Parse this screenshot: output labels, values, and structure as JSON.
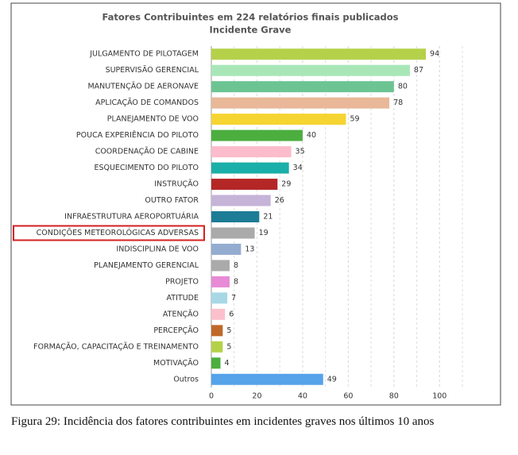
{
  "chart_data": {
    "type": "barh",
    "title": "Fatores Contribuintes em 224 relatórios finais publicados",
    "subtitle": "Incidente Grave",
    "categories": [
      "JULGAMENTO DE PILOTAGEM",
      "SUPERVISÃO GERENCIAL",
      "MANUTENÇÃO DE AERONAVE",
      "APLICAÇÃO DE COMANDOS",
      "PLANEJAMENTO DE VOO",
      "POUCA EXPERIÊNCIA DO PILOTO",
      "COORDENAÇÃO DE CABINE",
      "ESQUECIMENTO DO PILOTO",
      "INSTRUÇÃO",
      "OUTRO FATOR",
      "INFRAESTRUTURA AEROPORTUÁRIA",
      "CONDIÇÕES METEOROLÓGICAS ADVERSAS",
      "INDISCIPLINA DE VOO",
      "PLANEJAMENTO GERENCIAL",
      "PROJETO",
      "ATITUDE",
      "ATENÇÃO",
      "PERCEPÇÃO",
      "FORMAÇÃO, CAPACITAÇÃO E TREINAMENTO",
      "MOTIVAÇÃO",
      "Outros"
    ],
    "values": [
      94,
      87,
      80,
      78,
      59,
      40,
      35,
      34,
      29,
      26,
      21,
      19,
      13,
      8,
      8,
      7,
      6,
      5,
      5,
      4,
      49
    ],
    "colors": [
      "#b5d14a",
      "#a8e6b8",
      "#6cc493",
      "#e8b898",
      "#f6d431",
      "#4cae3f",
      "#fdbccb",
      "#1aafa8",
      "#b52626",
      "#c6b3d8",
      "#1d7c96",
      "#aaaaaa",
      "#93acd0",
      "#aaaaaa",
      "#e88ad6",
      "#a8d8e6",
      "#fcc0cc",
      "#c0682a",
      "#b5d14a",
      "#4cae3f",
      "#56a3ea"
    ],
    "highlight": "CONDIÇÕES METEOROLÓGICAS ADVERSAS",
    "xlim": [
      0,
      110
    ],
    "xticks": [
      0,
      20,
      40,
      60,
      80,
      100
    ],
    "grid": true
  },
  "caption": "Figura 29: Incidência dos fatores contribuintes em incidentes graves nos últimos 10 anos"
}
